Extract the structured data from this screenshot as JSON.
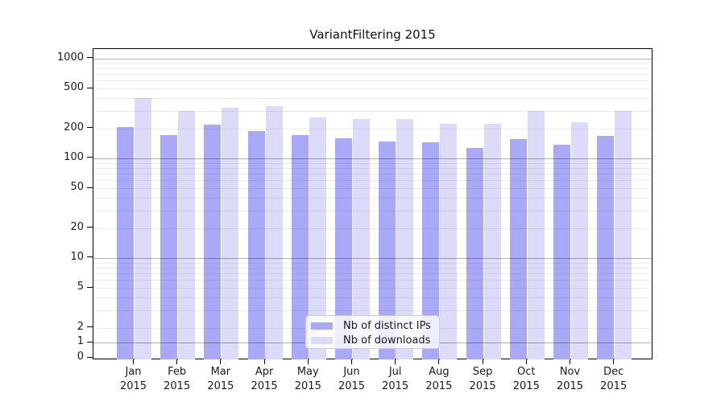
{
  "figure": {
    "background": "#ffffff",
    "frame_color": "#000000"
  },
  "chart_data": {
    "type": "bar",
    "title": "VariantFiltering 2015",
    "xlabel": "",
    "ylabel": "",
    "x_tick_year": "2015",
    "categories": [
      "Jan",
      "Feb",
      "Mar",
      "Apr",
      "May",
      "Jun",
      "Jul",
      "Aug",
      "Sep",
      "Oct",
      "Nov",
      "Dec"
    ],
    "series": [
      {
        "name": "Nb of distinct IPs",
        "color": "#a9a9f7",
        "values": [
          205,
          172,
          218,
          186,
          172,
          160,
          146,
          145,
          127,
          156,
          136,
          168
        ]
      },
      {
        "name": "Nb of downloads",
        "color": "#dcdcfa",
        "values": [
          400,
          300,
          320,
          335,
          257,
          247,
          246,
          220,
          222,
          298,
          232,
          300
        ]
      }
    ],
    "y_axis": {
      "scale": "symlog",
      "tick_labels": [
        "1000",
        "500",
        "200",
        "100",
        "50",
        "20",
        "10",
        "5",
        "2",
        "1",
        "0"
      ],
      "tick_values": [
        1000,
        500,
        200,
        100,
        50,
        20,
        10,
        5,
        2,
        1,
        0
      ],
      "range": [
        0,
        1250
      ]
    },
    "grid": {
      "show": true,
      "minor_color": "#ececec",
      "major_color": "#b3b3b3"
    },
    "legend": {
      "position": "lower-center"
    }
  }
}
